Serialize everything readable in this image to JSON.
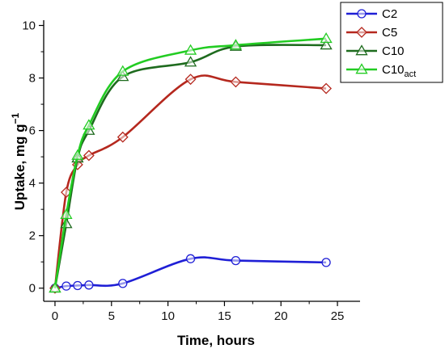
{
  "chart_data": {
    "type": "line",
    "xlabel": "Time, hours",
    "ylabel_main": "Uptake, mg g",
    "ylabel_sup": "−1",
    "xlim": [
      -1,
      27
    ],
    "ylim": [
      -0.5,
      10.2
    ],
    "xticks": [
      0,
      5,
      10,
      15,
      20,
      25
    ],
    "yticks": [
      0,
      2,
      4,
      6,
      8,
      10
    ],
    "xtick_labels": [
      "0",
      "5",
      "10",
      "15",
      "20",
      "25"
    ],
    "ytick_labels": [
      "0",
      "2",
      "4",
      "6",
      "8",
      "10"
    ],
    "grid": false,
    "legend_position": "top-right",
    "series": [
      {
        "name": "C2",
        "name_sub": "",
        "marker": "circle",
        "color": "#1f1fd6",
        "marker_edge": "#1f1fd6",
        "x": [
          0,
          1,
          2,
          3,
          6,
          12,
          16,
          24
        ],
        "y": [
          0,
          0.08,
          0.1,
          0.12,
          0.18,
          1.12,
          1.05,
          0.98
        ]
      },
      {
        "name": "C5",
        "name_sub": "",
        "marker": "diamond",
        "color": "#b5281e",
        "marker_edge": "#b5281e",
        "x": [
          0,
          1,
          2,
          3,
          6,
          12,
          16,
          24
        ],
        "y": [
          0,
          3.65,
          4.7,
          5.05,
          5.75,
          7.95,
          7.85,
          7.6
        ]
      },
      {
        "name": "C10",
        "name_sub": "",
        "marker": "triangle",
        "color": "#1e6b1e",
        "marker_edge": "#1e6b1e",
        "x": [
          0,
          1,
          2,
          3,
          6,
          12,
          16,
          24
        ],
        "y": [
          0,
          2.45,
          4.95,
          6.0,
          8.05,
          8.6,
          9.2,
          9.25
        ]
      },
      {
        "name": "C10",
        "name_sub": "act",
        "marker": "triangle",
        "color": "#22cc22",
        "marker_edge": "#22cc22",
        "x": [
          0,
          1,
          2,
          3,
          6,
          12,
          16,
          24
        ],
        "y": [
          0,
          2.8,
          5.05,
          6.2,
          8.25,
          9.05,
          9.25,
          9.5
        ]
      }
    ]
  }
}
